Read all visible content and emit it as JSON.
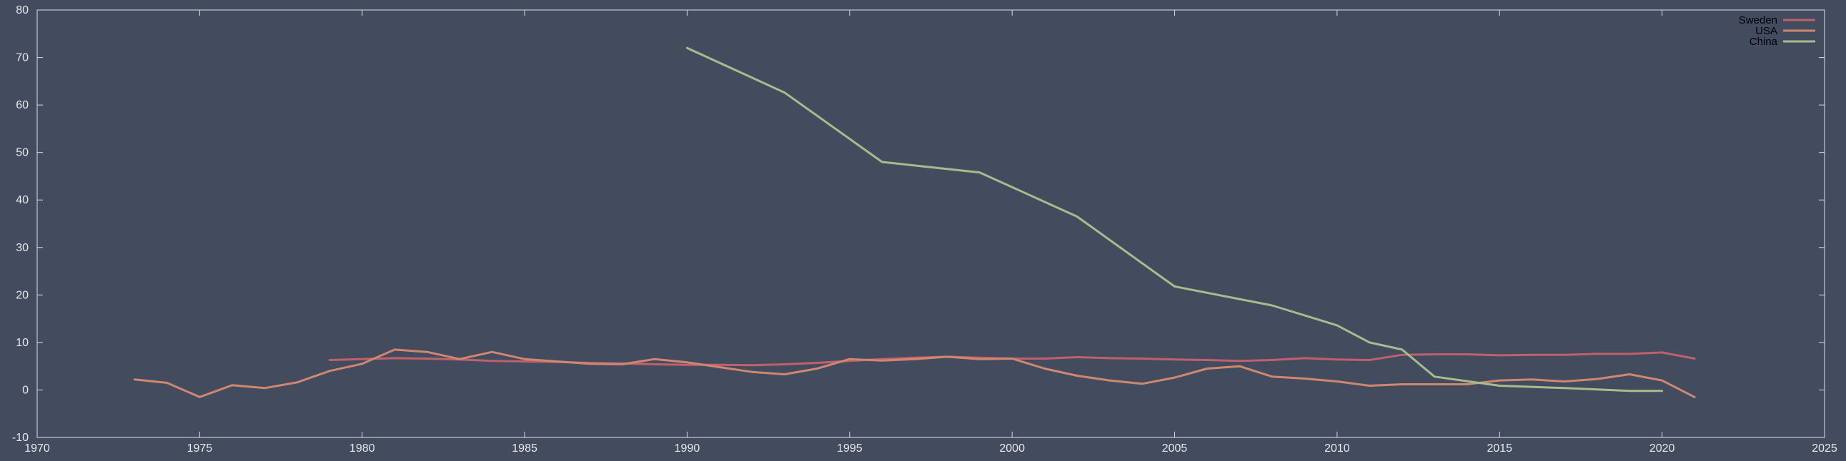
{
  "chart_data": {
    "type": "line",
    "title": "",
    "xlabel": "",
    "ylabel": "",
    "xlim": [
      1970,
      2025
    ],
    "ylim": [
      -10,
      80
    ],
    "xticks": [
      1970,
      1975,
      1980,
      1985,
      1990,
      1995,
      2000,
      2005,
      2010,
      2015,
      2020,
      2025
    ],
    "yticks": [
      -10,
      0,
      10,
      20,
      30,
      40,
      50,
      60,
      70,
      80
    ],
    "grid": false,
    "legend_position": "top-right",
    "background_color": "#434c5e",
    "series": [
      {
        "name": "Sweden",
        "color": "#bf616a",
        "x": [
          1979,
          1980,
          1981,
          1982,
          1983,
          1984,
          1985,
          1986,
          1987,
          1988,
          1989,
          1990,
          1991,
          1992,
          1993,
          1994,
          1995,
          1996,
          1997,
          1998,
          1999,
          2000,
          2001,
          2002,
          2003,
          2004,
          2005,
          2006,
          2007,
          2008,
          2009,
          2010,
          2011,
          2012,
          2013,
          2014,
          2015,
          2016,
          2017,
          2018,
          2019,
          2020,
          2021
        ],
        "values": [
          6.3,
          6.5,
          6.7,
          6.6,
          6.4,
          6.1,
          6.0,
          5.9,
          5.7,
          5.6,
          5.4,
          5.3,
          5.3,
          5.2,
          5.4,
          5.7,
          6.1,
          6.5,
          6.8,
          7.0,
          6.8,
          6.6,
          6.6,
          6.9,
          6.7,
          6.6,
          6.4,
          6.3,
          6.1,
          6.3,
          6.7,
          6.4,
          6.3,
          7.4,
          7.5,
          7.5,
          7.3,
          7.4,
          7.4,
          7.6,
          7.6,
          7.9,
          6.6
        ]
      },
      {
        "name": "USA",
        "color": "#d08770",
        "x": [
          1973,
          1974,
          1975,
          1976,
          1977,
          1978,
          1979,
          1980,
          1981,
          1982,
          1983,
          1984,
          1985,
          1986,
          1987,
          1988,
          1989,
          1990,
          1991,
          1992,
          1993,
          1994,
          1995,
          1996,
          1997,
          1998,
          1999,
          2000,
          2001,
          2002,
          2003,
          2004,
          2005,
          2006,
          2007,
          2008,
          2009,
          2010,
          2011,
          2012,
          2013,
          2014,
          2015,
          2016,
          2017,
          2018,
          2019,
          2020,
          2021
        ],
        "values": [
          2.2,
          1.5,
          -1.5,
          1.0,
          0.4,
          1.6,
          4.0,
          5.5,
          8.5,
          8.0,
          6.5,
          8.0,
          6.5,
          6.0,
          5.5,
          5.4,
          6.5,
          5.8,
          4.8,
          3.8,
          3.3,
          4.5,
          6.5,
          6.2,
          6.5,
          7.0,
          6.5,
          6.6,
          4.5,
          3.0,
          2.0,
          1.3,
          2.6,
          4.5,
          5.0,
          2.8,
          2.4,
          1.8,
          0.9,
          1.2,
          1.2,
          1.2,
          2.0,
          2.2,
          1.8,
          2.3,
          3.3,
          2.0,
          -1.5
        ]
      },
      {
        "name": "China",
        "color": "#a3be8c",
        "x": [
          1990,
          1993,
          1996,
          1999,
          2002,
          2005,
          2008,
          2010,
          2011,
          2012,
          2013,
          2015,
          2017,
          2019,
          2020
        ],
        "values": [
          72,
          62.6,
          48,
          45.8,
          36.5,
          21.8,
          17.8,
          13.6,
          10.0,
          8.5,
          2.8,
          0.9,
          0.4,
          -0.2,
          -0.2
        ]
      }
    ]
  }
}
